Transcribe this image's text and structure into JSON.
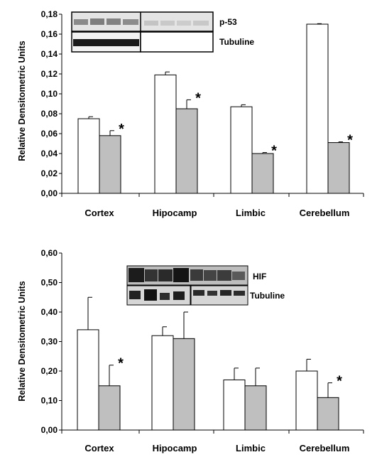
{
  "chart_data": [
    {
      "type": "bar",
      "title": "",
      "xlabel": "",
      "ylabel": "Relative Densitometric Units",
      "ylim": [
        0,
        0.18
      ],
      "yticks": [
        "0,00",
        "0,02",
        "0,04",
        "0,06",
        "0,08",
        "0,10",
        "0,12",
        "0,14",
        "0,16",
        "0,18"
      ],
      "categories": [
        "Cortex",
        "Hipocamp",
        "Limbic",
        "Cerebellum"
      ],
      "series": [
        {
          "color": "#ffffff",
          "values": [
            0.075,
            0.119,
            0.087,
            0.17
          ],
          "errors": [
            0.002,
            0.003,
            0.002,
            0.0005
          ]
        },
        {
          "color": "#bfbfbf",
          "values": [
            0.058,
            0.085,
            0.04,
            0.051
          ],
          "errors": [
            0.005,
            0.009,
            0.001,
            0.0007
          ]
        }
      ],
      "significance": [
        "*",
        "*",
        "*",
        "*"
      ],
      "blot_labels": [
        "p-53",
        "Tubuline"
      ]
    },
    {
      "type": "bar",
      "title": "",
      "xlabel": "",
      "ylabel": "Relative Densitometric Units",
      "ylim": [
        0,
        0.6
      ],
      "yticks": [
        "0,00",
        "0,10",
        "0,20",
        "0,30",
        "0,40",
        "0,50",
        "0,60"
      ],
      "categories": [
        "Cortex",
        "Hipocamp",
        "Limbic",
        "Cerebellum"
      ],
      "series": [
        {
          "color": "#ffffff",
          "values": [
            0.34,
            0.32,
            0.17,
            0.2
          ],
          "errors": [
            0.11,
            0.03,
            0.04,
            0.04
          ]
        },
        {
          "color": "#bfbfbf",
          "values": [
            0.15,
            0.31,
            0.15,
            0.11
          ],
          "errors": [
            0.07,
            0.09,
            0.06,
            0.05
          ]
        }
      ],
      "significance": [
        "*",
        "",
        "",
        "*"
      ],
      "blot_labels": [
        "HIF",
        "Tubuline"
      ]
    }
  ]
}
